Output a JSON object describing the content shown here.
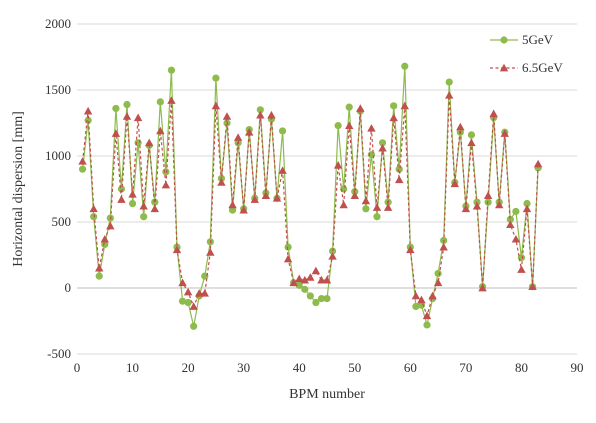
{
  "colors": {
    "series_5gev": "#8dbb4c",
    "series_65gev": "#c0504d",
    "gridline": "#d9d9d9",
    "axis": "#bfbfbf",
    "text": "#333333"
  },
  "chart_data": {
    "type": "line",
    "title": "",
    "xlabel": "BPM number",
    "ylabel": "Horizontal dispersion [mm]",
    "xlim": [
      0,
      90
    ],
    "ylim": [
      -500,
      2000
    ],
    "x_ticks": [
      "0",
      "10",
      "20",
      "30",
      "40",
      "50",
      "60",
      "70",
      "80",
      "90"
    ],
    "y_ticks": [
      "-500",
      "0",
      "500",
      "1000",
      "1500",
      "2000"
    ],
    "grid": "horizontal",
    "legend": "top-right",
    "x": [
      1,
      2,
      3,
      4,
      5,
      6,
      7,
      8,
      9,
      10,
      11,
      12,
      13,
      14,
      15,
      16,
      17,
      18,
      19,
      20,
      21,
      22,
      23,
      24,
      25,
      26,
      27,
      28,
      29,
      30,
      31,
      32,
      33,
      34,
      35,
      36,
      37,
      38,
      39,
      40,
      41,
      42,
      43,
      44,
      45,
      46,
      47,
      48,
      49,
      50,
      51,
      52,
      53,
      54,
      55,
      56,
      57,
      58,
      59,
      60,
      61,
      62,
      63,
      64,
      65,
      66,
      67,
      68,
      69,
      70,
      71,
      72,
      73,
      74,
      75,
      76,
      77,
      78,
      79,
      80,
      81,
      82,
      83
    ],
    "series": [
      {
        "name": "5GeV",
        "line_style": "solid",
        "marker": "circle",
        "values": [
          900,
          1270,
          540,
          90,
          330,
          530,
          1360,
          750,
          1390,
          640,
          1100,
          540,
          1080,
          650,
          1410,
          880,
          1650,
          310,
          -100,
          -110,
          -290,
          -60,
          90,
          350,
          1590,
          830,
          1250,
          590,
          1100,
          600,
          1200,
          680,
          1350,
          720,
          1280,
          680,
          1190,
          310,
          40,
          20,
          -10,
          -60,
          -110,
          -80,
          -80,
          280,
          1230,
          750,
          1370,
          730,
          1340,
          600,
          1010,
          540,
          1100,
          650,
          1380,
          900,
          1680,
          310,
          -140,
          -130,
          -280,
          -80,
          110,
          360,
          1560,
          800,
          1180,
          620,
          1160,
          650,
          10,
          650,
          1290,
          650,
          1180,
          520,
          580,
          230,
          640,
          10,
          910
        ]
      },
      {
        "name": "6.5GeV",
        "line_style": "dashed",
        "marker": "triangle",
        "values": [
          960,
          1340,
          600,
          150,
          370,
          470,
          1170,
          670,
          1300,
          710,
          1290,
          620,
          1100,
          600,
          1190,
          780,
          1420,
          290,
          40,
          -30,
          -140,
          -40,
          -40,
          270,
          1380,
          800,
          1300,
          630,
          1140,
          590,
          1180,
          670,
          1310,
          700,
          1310,
          680,
          890,
          220,
          40,
          70,
          60,
          80,
          130,
          60,
          60,
          240,
          930,
          630,
          1230,
          700,
          1360,
          660,
          1210,
          610,
          1060,
          610,
          1290,
          820,
          1380,
          290,
          -60,
          -90,
          -210,
          -60,
          40,
          310,
          1460,
          790,
          1220,
          600,
          1100,
          620,
          0,
          700,
          1320,
          630,
          1170,
          480,
          370,
          140,
          600,
          10,
          940
        ]
      }
    ]
  }
}
